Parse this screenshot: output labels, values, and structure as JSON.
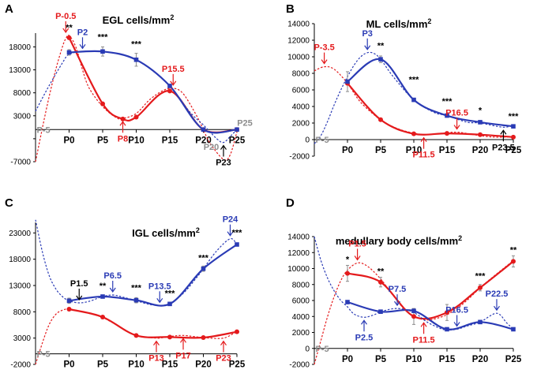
{
  "colors": {
    "red": "#e41a1c",
    "blue": "#2a3bb5",
    "black": "#000000",
    "gray": "#8c8c8c"
  },
  "chart_data": [
    {
      "type": "line",
      "panel": "A",
      "title": "EGL cells/mm",
      "title_sup": "2",
      "categories": [
        "P0",
        "P5",
        "P10",
        "P15",
        "P20",
        "P25"
      ],
      "x": [
        0,
        5,
        10,
        15,
        20,
        25
      ],
      "xlim": [
        -5,
        25
      ],
      "ylim": [
        -7000,
        21000
      ],
      "yticks": [
        -7000,
        -2000,
        3000,
        8000,
        13000,
        18000
      ],
      "ytick_labels": [
        "-7000",
        "",
        "3000",
        "8000",
        "13000",
        "18000"
      ],
      "series": [
        {
          "name": "red data",
          "color": "red",
          "x": [
            0,
            5,
            8,
            10,
            15,
            20,
            25
          ],
          "values": [
            20000,
            5600,
            2300,
            2700,
            8400,
            0,
            0
          ]
        },
        {
          "name": "blue data",
          "color": "blue",
          "x": [
            0,
            5,
            10,
            15,
            20,
            25
          ],
          "values": [
            16800,
            17000,
            15200,
            9500,
            0,
            0
          ]
        },
        {
          "name": "red fit",
          "color": "red",
          "dashed": true,
          "x": [
            -5,
            -4,
            -3,
            -2,
            -1,
            -0.5,
            0,
            1,
            2,
            3,
            5,
            7,
            8,
            10,
            12,
            14,
            15.5,
            17,
            19,
            20,
            21,
            23,
            24,
            25
          ],
          "values": [
            -7000,
            200,
            7000,
            13000,
            18000,
            19800,
            20500,
            18000,
            13000,
            9000,
            5000,
            2600,
            2400,
            3500,
            6500,
            8500,
            9000,
            7800,
            3000,
            0,
            -3000,
            -6500,
            -5500,
            -500
          ]
        },
        {
          "name": "blue fit",
          "color": "blue",
          "dashed": true,
          "x": [
            -5,
            -3,
            -1,
            0,
            2,
            5,
            8,
            10,
            12,
            15,
            18,
            20,
            22,
            23,
            24,
            25
          ],
          "values": [
            4000,
            9500,
            14500,
            16400,
            17000,
            17000,
            16300,
            15200,
            13300,
            9500,
            3800,
            1000,
            -2000,
            -2800,
            -1500,
            0
          ]
        }
      ],
      "error_bars": [
        {
          "x": 5,
          "y": 17000,
          "err": 1000,
          "color": "gray"
        },
        {
          "x": 10,
          "y": 15200,
          "err": 1400,
          "color": "gray"
        },
        {
          "x": 0,
          "y": 16800,
          "err": 600,
          "color": "gray"
        }
      ],
      "annotations": [
        {
          "text": "P-0.5",
          "color": "red",
          "x": -0.5,
          "y": 20500,
          "dir": "up"
        },
        {
          "text": "P2",
          "color": "blue",
          "x": 2,
          "y": 17000,
          "dir": "up"
        },
        {
          "text": "P8",
          "color": "red",
          "x": 8,
          "y": 2400,
          "dir": "down"
        },
        {
          "text": "P15.5",
          "color": "red",
          "x": 15.5,
          "y": 9000,
          "dir": "up"
        },
        {
          "text": "P23",
          "color": "black",
          "x": 23,
          "y": -2800,
          "dir": "down"
        }
      ],
      "significance": [
        {
          "text": "**",
          "x": 0,
          "y": 21600
        },
        {
          "text": "***",
          "x": 5,
          "y": 19500
        },
        {
          "text": "***",
          "x": 10,
          "y": 18000
        }
      ],
      "gray_labels": [
        {
          "text": "P-5",
          "x": -5,
          "y": 0
        },
        {
          "text": "P25",
          "x": 25,
          "y": 1500
        },
        {
          "text": "P20",
          "x": 20,
          "y": -3700
        }
      ]
    },
    {
      "type": "line",
      "panel": "B",
      "title": "ML   cells/mm",
      "title_sup": "2",
      "categories": [
        "P0",
        "P5",
        "P10",
        "P15",
        "P20",
        "P25"
      ],
      "x": [
        0,
        5,
        10,
        15,
        20,
        25
      ],
      "xlim": [
        -5,
        25
      ],
      "ylim": [
        -2000,
        14000
      ],
      "yticks": [
        -2000,
        0,
        2000,
        4000,
        6000,
        8000,
        10000,
        12000,
        14000
      ],
      "ytick_labels": [
        "-2000",
        "0",
        "2000",
        "4000",
        "6000",
        "8000",
        "10000",
        "12000",
        "14000"
      ],
      "series": [
        {
          "name": "red data",
          "color": "red",
          "x": [
            0,
            5,
            10,
            15,
            20,
            25
          ],
          "values": [
            6800,
            2400,
            700,
            750,
            600,
            300
          ]
        },
        {
          "name": "blue data",
          "color": "blue",
          "x": [
            0,
            5,
            10,
            15,
            20,
            25
          ],
          "values": [
            7000,
            9700,
            4800,
            2900,
            2100,
            1600
          ]
        },
        {
          "name": "red fit",
          "color": "red",
          "dashed": true,
          "x": [
            -5,
            -3.5,
            -2,
            0,
            2,
            5,
            8,
            11.5,
            14,
            16.5,
            19,
            22,
            25
          ],
          "values": [
            8300,
            8800,
            8500,
            6800,
            4500,
            2400,
            1200,
            600,
            750,
            900,
            600,
            300,
            350
          ]
        },
        {
          "name": "blue fit",
          "color": "blue",
          "dashed": true,
          "x": [
            -5,
            -4,
            -3,
            -2,
            -1,
            0,
            1,
            2,
            3,
            4,
            5,
            7,
            10,
            13,
            15,
            18,
            20,
            23.5,
            25
          ],
          "values": [
            -500,
            500,
            2200,
            4200,
            6000,
            7600,
            9000,
            10000,
            10500,
            10400,
            9700,
            7500,
            4800,
            3300,
            2900,
            2100,
            2000,
            1500,
            1800
          ]
        }
      ],
      "error_bars": [
        {
          "x": 0,
          "y": 7000,
          "err": 1200,
          "color": "gray"
        },
        {
          "x": 5,
          "y": 9700,
          "err": 400,
          "color": "gray"
        },
        {
          "x": 15,
          "y": 2900,
          "err": 200,
          "color": "gray"
        },
        {
          "x": 20,
          "y": 2100,
          "err": 200,
          "color": "gray"
        }
      ],
      "annotations": [
        {
          "text": "P-3.5",
          "color": "red",
          "x": -3.5,
          "y": 8800,
          "dir": "up"
        },
        {
          "text": "P3",
          "color": "blue",
          "x": 3,
          "y": 10500,
          "dir": "up"
        },
        {
          "text": "P11.5",
          "color": "red",
          "x": 11.5,
          "y": 600,
          "dir": "down"
        },
        {
          "text": "P16.5",
          "color": "red",
          "x": 16.5,
          "y": 900,
          "dir": "up"
        },
        {
          "text": "P23.5",
          "color": "black",
          "x": 23.5,
          "y": 1500,
          "dir": "down"
        }
      ],
      "significance": [
        {
          "text": "**",
          "x": 5,
          "y": 11000
        },
        {
          "text": "***",
          "x": 10,
          "y": 6900
        },
        {
          "text": "***",
          "x": 15,
          "y": 4300
        },
        {
          "text": "*",
          "x": 20,
          "y": 3200
        },
        {
          "text": "***",
          "x": 25,
          "y": 2500
        }
      ],
      "gray_labels": [
        {
          "text": "P-5",
          "x": -5,
          "y": 0
        }
      ]
    },
    {
      "type": "line",
      "panel": "C",
      "title": "IGL  cells/mm",
      "title_sup": "2",
      "categories": [
        "P0",
        "P5",
        "P10",
        "P15",
        "P20",
        "P25"
      ],
      "x": [
        0,
        5,
        10,
        15,
        20,
        25
      ],
      "xlim": [
        -5,
        25
      ],
      "ylim": [
        -2000,
        25000
      ],
      "yticks": [
        -2000,
        3000,
        8000,
        13000,
        18000,
        23000
      ],
      "ytick_labels": [
        "-2000",
        "3000",
        "8000",
        "13000",
        "18000",
        "23000"
      ],
      "series": [
        {
          "name": "red data",
          "color": "red",
          "x": [
            0,
            5,
            10,
            15,
            20,
            25
          ],
          "values": [
            8500,
            7000,
            3500,
            3200,
            3100,
            4200
          ]
        },
        {
          "name": "blue data",
          "color": "blue",
          "x": [
            0,
            5,
            10,
            15,
            20,
            25
          ],
          "values": [
            10100,
            10900,
            10200,
            9500,
            16200,
            20800
          ]
        },
        {
          "name": "red fit",
          "color": "red",
          "dashed": true,
          "x": [
            -5,
            -4,
            -3,
            -2,
            -1,
            0,
            2,
            5,
            8,
            10,
            13,
            15,
            17,
            20,
            23,
            25
          ],
          "values": [
            -2000,
            2000,
            5500,
            7500,
            8300,
            8500,
            8000,
            6900,
            4800,
            3500,
            3000,
            3300,
            3500,
            3100,
            3000,
            4300
          ]
        },
        {
          "name": "blue fit",
          "color": "blue",
          "dashed": true,
          "x": [
            -5,
            -4,
            -3,
            -2,
            -1,
            0,
            1.5,
            3,
            5,
            6.5,
            8,
            10,
            12,
            13.5,
            15,
            17,
            19,
            20,
            22,
            24,
            25
          ],
          "values": [
            25500,
            19500,
            15000,
            12400,
            10900,
            10100,
            9700,
            10000,
            10900,
            11200,
            10800,
            10100,
            9400,
            9200,
            9600,
            11500,
            14500,
            16200,
            19600,
            21900,
            20800
          ]
        }
      ],
      "error_bars": [
        {
          "x": 0,
          "y": 10100,
          "err": 500,
          "color": "gray"
        },
        {
          "x": 10,
          "y": 10200,
          "err": 500,
          "color": "gray"
        },
        {
          "x": 20,
          "y": 16200,
          "err": 500,
          "color": "gray"
        }
      ],
      "annotations": [
        {
          "text": "P1.5",
          "color": "black",
          "x": 1.5,
          "y": 9700,
          "dir": "up"
        },
        {
          "text": "P6.5",
          "color": "blue",
          "x": 6.5,
          "y": 11200,
          "dir": "up"
        },
        {
          "text": "P13.5",
          "color": "blue",
          "x": 13.5,
          "y": 9200,
          "dir": "up"
        },
        {
          "text": "P13",
          "color": "red",
          "x": 13,
          "y": 3000,
          "dir": "down"
        },
        {
          "text": "P17",
          "color": "red",
          "x": 17,
          "y": 3500,
          "dir": "down"
        },
        {
          "text": "P23",
          "color": "red",
          "x": 23,
          "y": 3000,
          "dir": "down"
        },
        {
          "text": "P24",
          "color": "blue",
          "x": 24,
          "y": 21900,
          "dir": "up"
        }
      ],
      "significance": [
        {
          "text": "**",
          "x": 5,
          "y": 12400
        },
        {
          "text": "***",
          "x": 10,
          "y": 12000
        },
        {
          "text": "***",
          "x": 15,
          "y": 11000
        },
        {
          "text": "***",
          "x": 20,
          "y": 17700
        },
        {
          "text": "***",
          "x": 25,
          "y": 22500
        }
      ],
      "gray_labels": [
        {
          "text": "P-5",
          "x": -5,
          "y": 0
        }
      ]
    },
    {
      "type": "line",
      "panel": "D",
      "title": "medullary body cells/mm",
      "title_sup": "2",
      "categories": [
        "P0",
        "P5",
        "P10",
        "P15",
        "P20",
        "P25"
      ],
      "x": [
        0,
        5,
        10,
        15,
        20,
        25
      ],
      "xlim": [
        -5,
        25
      ],
      "ylim": [
        -2000,
        14000
      ],
      "yticks": [
        -2000,
        0,
        2000,
        4000,
        6000,
        8000,
        10000,
        12000,
        14000
      ],
      "ytick_labels": [
        "-2000",
        "0",
        "2000",
        "4000",
        "6000",
        "8000",
        "10000",
        "12000",
        "14000"
      ],
      "series": [
        {
          "name": "red data",
          "color": "red",
          "x": [
            0,
            5,
            10,
            15,
            20,
            25
          ],
          "values": [
            9400,
            8300,
            4000,
            4500,
            7600,
            10900
          ]
        },
        {
          "name": "blue data",
          "color": "blue",
          "x": [
            0,
            5,
            10,
            15,
            20,
            25
          ],
          "values": [
            5800,
            4600,
            4700,
            2400,
            3300,
            2400
          ]
        },
        {
          "name": "red fit",
          "color": "red",
          "dashed": true,
          "x": [
            -5,
            -4,
            -3,
            -2,
            -1,
            0,
            1.5,
            3,
            5,
            7,
            9,
            11.5,
            14,
            16,
            18,
            20,
            22,
            25
          ],
          "values": [
            -2000,
            1000,
            4000,
            6500,
            8500,
            9800,
            10700,
            10300,
            8700,
            6500,
            4600,
            3600,
            3900,
            4700,
            6000,
            7600,
            9000,
            11000
          ]
        },
        {
          "name": "blue fit",
          "color": "blue",
          "dashed": true,
          "x": [
            -5,
            -4,
            -3,
            -2,
            -1,
            0,
            1,
            2.5,
            4,
            5,
            7.5,
            10,
            12,
            14,
            15,
            16.5,
            18,
            20,
            22.5,
            24,
            25
          ],
          "values": [
            14000,
            11000,
            8800,
            7200,
            6000,
            5200,
            4300,
            3900,
            4200,
            4600,
            5000,
            4500,
            3300,
            2500,
            2300,
            2400,
            2800,
            3300,
            4400,
            3200,
            2400
          ]
        }
      ],
      "error_bars": [
        {
          "x": 0,
          "y": 9400,
          "err": 1000,
          "color": "gray"
        },
        {
          "x": 5,
          "y": 8300,
          "err": 600,
          "color": "gray"
        },
        {
          "x": 10,
          "y": 4000,
          "err": 1000,
          "color": "gray"
        },
        {
          "x": 15,
          "y": 4500,
          "err": 1000,
          "color": "gray"
        },
        {
          "x": 20,
          "y": 7600,
          "err": 400,
          "color": "gray"
        },
        {
          "x": 25,
          "y": 10900,
          "err": 700,
          "color": "gray"
        }
      ],
      "annotations": [
        {
          "text": "P1.5",
          "color": "red",
          "x": 1.5,
          "y": 10700,
          "dir": "up"
        },
        {
          "text": "P2.5",
          "color": "blue",
          "x": 2.5,
          "y": 3900,
          "dir": "down"
        },
        {
          "text": "P7.5",
          "color": "blue",
          "x": 7.5,
          "y": 5000,
          "dir": "up"
        },
        {
          "text": "P11.5",
          "color": "red",
          "x": 11.5,
          "y": 3600,
          "dir": "down"
        },
        {
          "text": "P16.5",
          "color": "blue",
          "x": 16.5,
          "y": 2400,
          "dir": "up"
        },
        {
          "text": "P22.5",
          "color": "blue",
          "x": 22.5,
          "y": 4400,
          "dir": "up"
        }
      ],
      "significance": [
        {
          "text": "*",
          "x": 0,
          "y": 10800
        },
        {
          "text": "**",
          "x": 5,
          "y": 9300
        },
        {
          "text": "***",
          "x": 20,
          "y": 8700
        },
        {
          "text": "**",
          "x": 25,
          "y": 12000
        }
      ],
      "gray_labels": [
        {
          "text": "P-5",
          "x": -5,
          "y": 0
        }
      ]
    }
  ]
}
